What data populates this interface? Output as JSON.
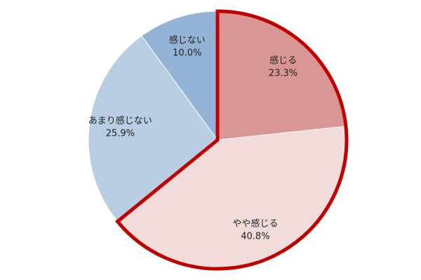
{
  "chart_data": {
    "type": "pie",
    "categories": [
      "感じる",
      "やや感じる",
      "あまり感じない",
      "感じない"
    ],
    "values": [
      23.3,
      40.8,
      25.9,
      10.0
    ],
    "value_labels": [
      "23.3%",
      "40.8%",
      "25.9%",
      "10.0%"
    ],
    "colors": [
      "#d99694",
      "#f2dcdb",
      "#b9cde5",
      "#95b3d7"
    ],
    "outlined_slices": [
      0,
      1
    ],
    "outline_color": "#c00000"
  }
}
